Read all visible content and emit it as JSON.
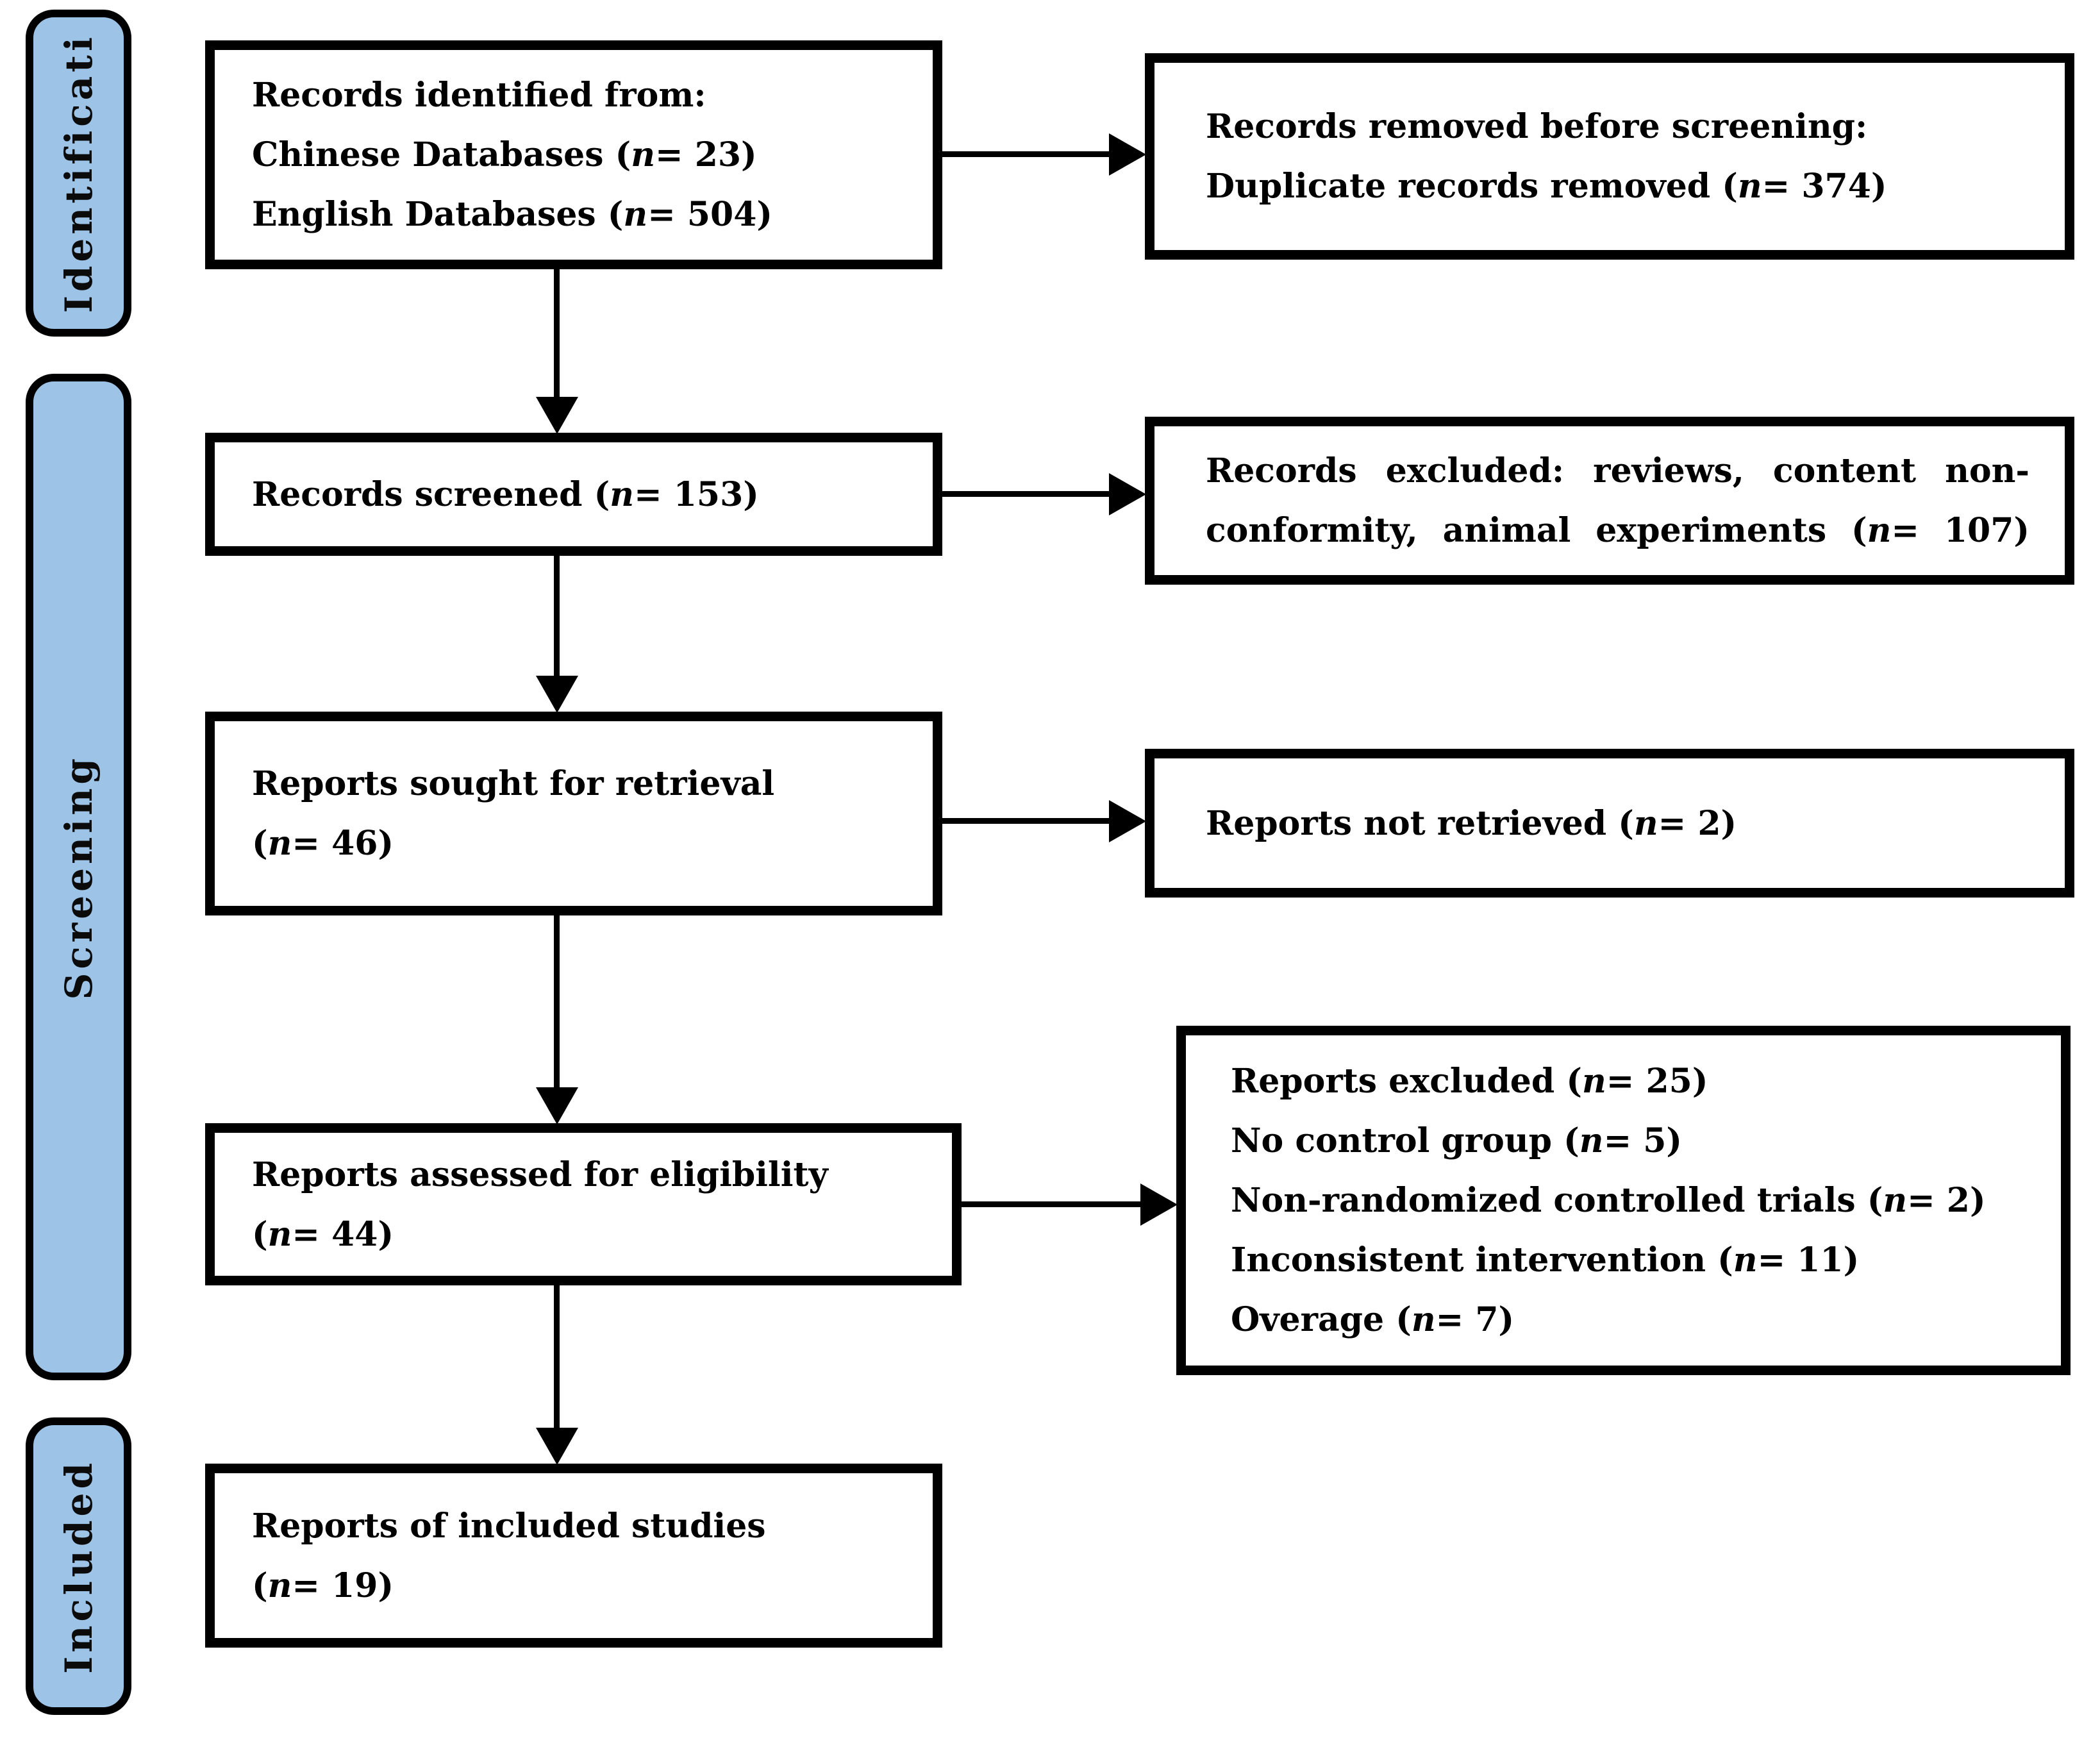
{
  "colors": {
    "stage_fill": "#9DC3E6",
    "border": "#000000",
    "box_bg": "#FFFFFF"
  },
  "sidebar": {
    "stages": [
      {
        "label": "Identificati"
      },
      {
        "label": "Screening"
      },
      {
        "label": "Included"
      }
    ]
  },
  "boxes": {
    "identified": {
      "lines": [
        "Records identified from:",
        "Chinese Databases (n= 23)",
        "English Databases (n= 504)"
      ]
    },
    "removed": {
      "lines": [
        "Records removed before screening:",
        "Duplicate records removed (n= 374)"
      ]
    },
    "screened": {
      "lines": [
        "Records screened (n= 153)"
      ]
    },
    "excluded_screening": {
      "lines": [
        "Records excluded: reviews, content non-",
        "conformity, animal experiments (n= 107)"
      ]
    },
    "sought": {
      "lines": [
        "Reports sought for retrieval",
        "(n= 46)"
      ]
    },
    "not_retrieved": {
      "lines": [
        "Reports not retrieved (n= 2)"
      ]
    },
    "assessed": {
      "lines": [
        "Reports assessed for eligibility",
        "(n= 44)"
      ]
    },
    "excluded_eligibility": {
      "lines": [
        "Reports excluded (n= 25)",
        "No control group (n= 5)",
        "Non-randomized controlled trials (n= 2)",
        "Inconsistent intervention (n= 11)",
        "Overage (n= 7)"
      ]
    },
    "included_studies": {
      "lines": [
        "Reports of included studies",
        "(n= 19)"
      ]
    }
  }
}
